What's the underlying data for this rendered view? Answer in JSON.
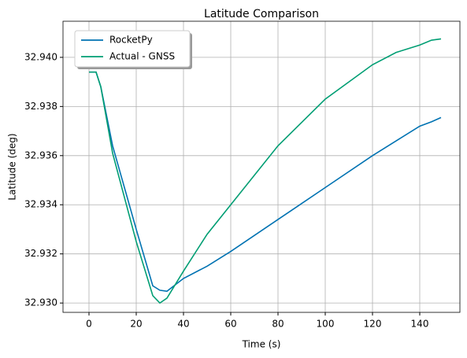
{
  "chart_data": {
    "type": "line",
    "title": "Latitude Comparison",
    "x_label": "Time (s)",
    "y_label": "Latitude (deg)",
    "x": [
      0,
      3,
      5,
      10,
      20,
      27,
      30,
      33,
      40,
      50,
      60,
      80,
      100,
      120,
      130,
      140,
      145,
      149
    ],
    "series": [
      {
        "name": "RocketPy",
        "color": "#0072b2",
        "values": [
          32.9394,
          32.9394,
          32.9388,
          32.9364,
          32.933,
          32.9307,
          32.93052,
          32.93048,
          32.931,
          32.9315,
          32.9321,
          32.9334,
          32.9347,
          32.936,
          32.9366,
          32.9372,
          32.93738,
          32.93755
        ]
      },
      {
        "name": "Actual - GNSS",
        "color": "#009e73",
        "values": [
          32.9394,
          32.9394,
          32.9388,
          32.9361,
          32.9325,
          32.9303,
          32.93,
          32.9302,
          32.9313,
          32.9328,
          32.934,
          32.9364,
          32.9383,
          32.9397,
          32.9402,
          32.9405,
          32.9407,
          32.94075
        ]
      }
    ],
    "xlim": [
      -11,
      157
    ],
    "ylim": [
      32.92962,
      32.94147
    ],
    "xticks": [
      0,
      20,
      40,
      60,
      80,
      100,
      120,
      140
    ],
    "yticks": [
      {
        "value": 32.93,
        "label": "32.930"
      },
      {
        "value": 32.932,
        "label": "32.932"
      },
      {
        "value": 32.934,
        "label": "32.934"
      },
      {
        "value": 32.936,
        "label": "32.936"
      },
      {
        "value": 32.938,
        "label": "32.938"
      },
      {
        "value": 32.94,
        "label": "32.940"
      }
    ],
    "grid": true,
    "legend": "upper-left"
  }
}
